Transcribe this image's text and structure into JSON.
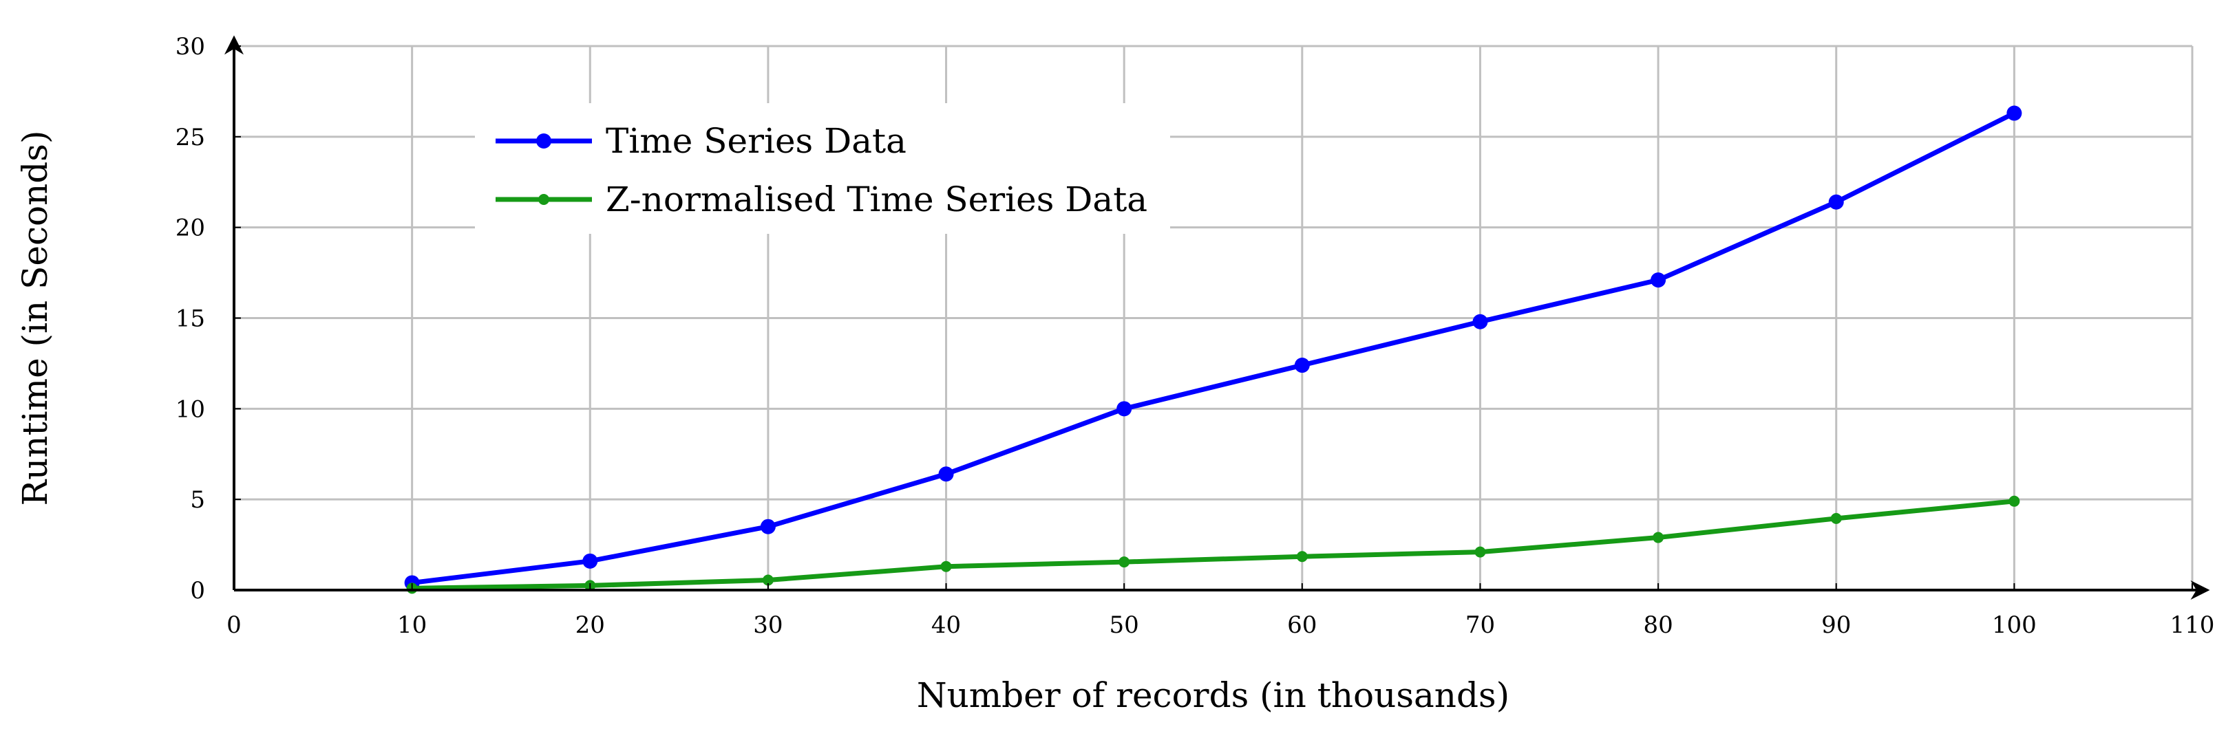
{
  "chart_data": {
    "type": "line",
    "title": "",
    "xlabel": "Number of records (in thousands)",
    "ylabel": "Runtime (in Seconds)",
    "xlim": [
      0,
      110
    ],
    "ylim": [
      0,
      30
    ],
    "xticks": [
      0,
      10,
      20,
      30,
      40,
      50,
      60,
      70,
      80,
      90,
      100,
      110
    ],
    "yticks": [
      0,
      5,
      10,
      15,
      20,
      25,
      30
    ],
    "grid": true,
    "legend_position": "top-left",
    "x": [
      10,
      20,
      30,
      40,
      50,
      60,
      70,
      80,
      90,
      100
    ],
    "series": [
      {
        "name": "Time Series Data",
        "color": "#0000ff",
        "marker": "circle",
        "values": [
          0.4,
          1.6,
          3.5,
          6.4,
          10.0,
          12.4,
          14.8,
          17.1,
          21.4,
          26.3
        ]
      },
      {
        "name": "Z-normalised Time Series Data",
        "color": "#169a16",
        "marker": "circle-small",
        "values": [
          0.1,
          0.25,
          0.55,
          1.3,
          1.55,
          1.85,
          2.1,
          2.9,
          3.95,
          4.9
        ]
      }
    ],
    "colors": {
      "grid": "#c0c0c0",
      "axis": "#000000"
    }
  }
}
